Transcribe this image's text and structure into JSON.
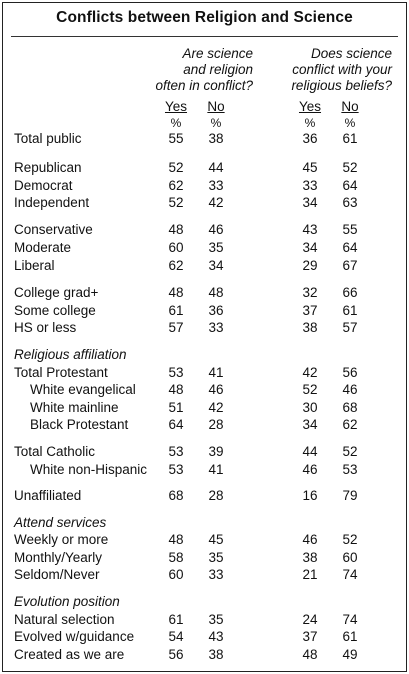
{
  "title": "Conflicts between Religion and Science",
  "q1": [
    "Are science",
    "and religion",
    "often in conflict?"
  ],
  "q2": [
    "Does science",
    "conflict with your",
    "religious beliefs?"
  ],
  "col_yes": "Yes",
  "col_no": "No",
  "pct": "%",
  "rows": [
    {
      "label": "Total public",
      "v": [
        "55",
        "38",
        "36",
        "61"
      ]
    },
    {
      "label": "Republican",
      "v": [
        "52",
        "44",
        "45",
        "52"
      ]
    },
    {
      "label": "Democrat",
      "v": [
        "62",
        "33",
        "33",
        "64"
      ]
    },
    {
      "label": "Independent",
      "v": [
        "52",
        "42",
        "34",
        "63"
      ]
    },
    {
      "label": "Conservative",
      "v": [
        "48",
        "46",
        "43",
        "55"
      ]
    },
    {
      "label": "Moderate",
      "v": [
        "60",
        "35",
        "34",
        "64"
      ]
    },
    {
      "label": "Liberal",
      "v": [
        "62",
        "34",
        "29",
        "67"
      ]
    },
    {
      "label": "College grad+",
      "v": [
        "48",
        "48",
        "32",
        "66"
      ]
    },
    {
      "label": "Some college",
      "v": [
        "61",
        "36",
        "37",
        "61"
      ]
    },
    {
      "label": "HS or less",
      "v": [
        "57",
        "33",
        "38",
        "57"
      ]
    },
    {
      "label": "Religious affiliation",
      "section": true
    },
    {
      "label": "Total Protestant",
      "v": [
        "53",
        "41",
        "42",
        "56"
      ]
    },
    {
      "label": "White evangelical",
      "indent": true,
      "v": [
        "48",
        "46",
        "52",
        "46"
      ]
    },
    {
      "label": "White mainline",
      "indent": true,
      "v": [
        "51",
        "42",
        "30",
        "68"
      ]
    },
    {
      "label": "Black Protestant",
      "indent": true,
      "v": [
        "64",
        "28",
        "34",
        "62"
      ]
    },
    {
      "label": "Total Catholic",
      "v": [
        "53",
        "39",
        "44",
        "52"
      ]
    },
    {
      "label": "White non-Hispanic",
      "indent": true,
      "v": [
        "53",
        "41",
        "46",
        "53"
      ]
    },
    {
      "label": "Unaffiliated",
      "v": [
        "68",
        "28",
        "16",
        "79"
      ]
    },
    {
      "label": "Attend services",
      "section": true
    },
    {
      "label": "Weekly or more",
      "v": [
        "48",
        "45",
        "46",
        "52"
      ]
    },
    {
      "label": "Monthly/Yearly",
      "v": [
        "58",
        "35",
        "38",
        "60"
      ]
    },
    {
      "label": "Seldom/Never",
      "v": [
        "60",
        "33",
        "21",
        "74"
      ]
    },
    {
      "label": "Evolution position",
      "section": true
    },
    {
      "label": "Natural selection",
      "v": [
        "61",
        "35",
        "24",
        "74"
      ]
    },
    {
      "label": "Evolved w/guidance",
      "v": [
        "54",
        "43",
        "37",
        "61"
      ]
    },
    {
      "label": "Created as we are",
      "v": [
        "56",
        "38",
        "48",
        "49"
      ]
    }
  ]
}
